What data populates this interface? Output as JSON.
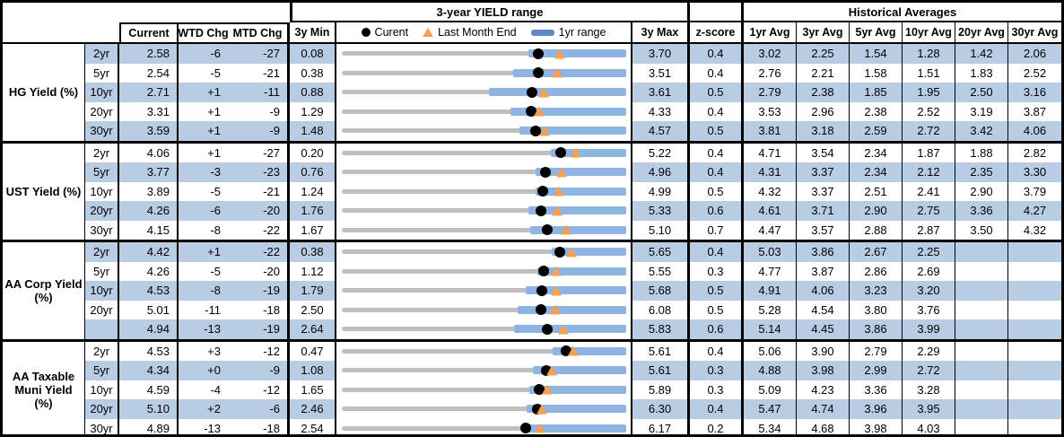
{
  "colors": {
    "band": "#B8CCE4",
    "range_bar": "#8EB4E3",
    "track": "#BFBFBF",
    "current_marker": "#000000",
    "last_month_end_marker": "#F7A050",
    "border": "#000000"
  },
  "header": {
    "range_group_title": "3-year YIELD range",
    "hist_group_title": "Historical Averages",
    "col_current": "Current",
    "col_wtd": "WTD Chg",
    "col_mtd": "MTD Chg",
    "col_min": "3y Min",
    "col_max": "3y Max",
    "col_z": "z-score",
    "avg_cols": [
      "1yr Avg",
      "3yr Avg",
      "5yr Avg",
      "10yr Avg",
      "20yr Avg",
      "30yr Avg"
    ],
    "legend": [
      {
        "marker": "black-dot",
        "label": "Curent"
      },
      {
        "marker": "orange-triangle",
        "label": "Last Month End"
      },
      {
        "marker": "blue-bar",
        "label": "1yr range"
      }
    ]
  },
  "chart_data": {
    "type": "bullet-range table",
    "description": "Per row: gray track spans 3y Min to 3y Max; blue bar = 1yr range; black dot = current yield; orange triangle = last month end yield. 1yr range endpoints estimated from pixels.",
    "groups": [
      {
        "label": "HG Yield (%)",
        "rows": [
          {
            "tenor": "2yr",
            "current": "2.58",
            "wtd_chg": "-6",
            "mtd_chg": "-27",
            "min_3y": "0.08",
            "max_3y": "3.70",
            "z_score": "0.4",
            "avgs": [
              "3.02",
              "2.25",
              "1.54",
              "1.28",
              "1.42",
              "2.06"
            ],
            "last_month_end": 2.85,
            "range_1y": [
              2.45,
              3.7
            ]
          },
          {
            "tenor": "5yr",
            "current": "2.54",
            "wtd_chg": "-5",
            "mtd_chg": "-21",
            "min_3y": "0.38",
            "max_3y": "3.51",
            "z_score": "0.4",
            "avgs": [
              "2.76",
              "2.21",
              "1.58",
              "1.51",
              "1.83",
              "2.52"
            ],
            "last_month_end": 2.75,
            "range_1y": [
              2.27,
              3.51
            ]
          },
          {
            "tenor": "10yr",
            "current": "2.71",
            "wtd_chg": "+1",
            "mtd_chg": "-11",
            "min_3y": "0.88",
            "max_3y": "3.61",
            "z_score": "0.5",
            "avgs": [
              "2.79",
              "2.38",
              "1.85",
              "1.95",
              "2.50",
              "3.16"
            ],
            "last_month_end": 2.82,
            "range_1y": [
              2.29,
              3.61
            ]
          },
          {
            "tenor": "20yr",
            "current": "3.31",
            "wtd_chg": "+1",
            "mtd_chg": "-9",
            "min_3y": "1.29",
            "max_3y": "4.33",
            "z_score": "0.4",
            "avgs": [
              "3.53",
              "2.96",
              "2.38",
              "2.52",
              "3.19",
              "3.87"
            ],
            "last_month_end": 3.4,
            "range_1y": [
              3.09,
              4.33
            ]
          },
          {
            "tenor": "30yr",
            "current": "3.59",
            "wtd_chg": "+1",
            "mtd_chg": "-9",
            "min_3y": "1.48",
            "max_3y": "4.57",
            "z_score": "0.5",
            "avgs": [
              "3.81",
              "3.18",
              "2.59",
              "2.72",
              "3.42",
              "4.06"
            ],
            "last_month_end": 3.68,
            "range_1y": [
              3.41,
              4.57
            ]
          }
        ]
      },
      {
        "label": "UST Yield (%)",
        "rows": [
          {
            "tenor": "2yr",
            "current": "4.06",
            "wtd_chg": "+1",
            "mtd_chg": "-27",
            "min_3y": "0.20",
            "max_3y": "5.22",
            "z_score": "0.4",
            "avgs": [
              "4.71",
              "3.54",
              "2.34",
              "1.87",
              "1.88",
              "2.82"
            ],
            "last_month_end": 4.33,
            "range_1y": [
              3.89,
              5.22
            ]
          },
          {
            "tenor": "5yr",
            "current": "3.77",
            "wtd_chg": "-3",
            "mtd_chg": "-23",
            "min_3y": "0.76",
            "max_3y": "4.96",
            "z_score": "0.4",
            "avgs": [
              "4.31",
              "3.37",
              "2.34",
              "2.12",
              "2.35",
              "3.30"
            ],
            "last_month_end": 4.0,
            "range_1y": [
              3.62,
              4.96
            ]
          },
          {
            "tenor": "10yr",
            "current": "3.89",
            "wtd_chg": "-5",
            "mtd_chg": "-21",
            "min_3y": "1.24",
            "max_3y": "4.99",
            "z_score": "0.5",
            "avgs": [
              "4.32",
              "3.37",
              "2.51",
              "2.41",
              "2.90",
              "3.79"
            ],
            "last_month_end": 4.1,
            "range_1y": [
              3.79,
              4.99
            ]
          },
          {
            "tenor": "20yr",
            "current": "4.26",
            "wtd_chg": "-6",
            "mtd_chg": "-20",
            "min_3y": "1.76",
            "max_3y": "5.33",
            "z_score": "0.6",
            "avgs": [
              "4.61",
              "3.71",
              "2.90",
              "2.75",
              "3.36",
              "4.27"
            ],
            "last_month_end": 4.46,
            "range_1y": [
              4.1,
              5.33
            ]
          },
          {
            "tenor": "30yr",
            "current": "4.15",
            "wtd_chg": "-8",
            "mtd_chg": "-22",
            "min_3y": "1.67",
            "max_3y": "5.10",
            "z_score": "0.7",
            "avgs": [
              "4.47",
              "3.57",
              "2.88",
              "2.87",
              "3.50",
              "4.32"
            ],
            "last_month_end": 4.37,
            "range_1y": [
              3.94,
              5.1
            ]
          }
        ]
      },
      {
        "label": "AA Corp Yield (%)",
        "rows": [
          {
            "tenor": "2yr",
            "current": "4.42",
            "wtd_chg": "+1",
            "mtd_chg": "-22",
            "min_3y": "0.38",
            "max_3y": "5.65",
            "z_score": "0.4",
            "avgs": [
              "5.03",
              "3.86",
              "2.67",
              "2.25",
              "",
              ""
            ],
            "last_month_end": 4.64,
            "range_1y": [
              4.27,
              5.65
            ]
          },
          {
            "tenor": "5yr",
            "current": "4.26",
            "wtd_chg": "-5",
            "mtd_chg": "-20",
            "min_3y": "1.12",
            "max_3y": "5.55",
            "z_score": "0.3",
            "avgs": [
              "4.77",
              "3.87",
              "2.86",
              "2.69",
              "",
              ""
            ],
            "last_month_end": 4.46,
            "range_1y": [
              4.17,
              5.55
            ]
          },
          {
            "tenor": "10yr",
            "current": "4.53",
            "wtd_chg": "-8",
            "mtd_chg": "-19",
            "min_3y": "1.79",
            "max_3y": "5.68",
            "z_score": "0.5",
            "avgs": [
              "4.91",
              "4.06",
              "3.23",
              "3.20",
              "",
              ""
            ],
            "last_month_end": 4.72,
            "range_1y": [
              4.31,
              5.68
            ]
          },
          {
            "tenor": "20yr",
            "current": "5.01",
            "wtd_chg": "-11",
            "mtd_chg": "-18",
            "min_3y": "2.50",
            "max_3y": "6.08",
            "z_score": "0.5",
            "avgs": [
              "5.28",
              "4.54",
              "3.80",
              "3.76",
              "",
              ""
            ],
            "last_month_end": 5.19,
            "range_1y": [
              4.71,
              6.08
            ]
          },
          {
            "tenor": "",
            "current": "4.94",
            "wtd_chg": "-13",
            "mtd_chg": "-19",
            "min_3y": "2.64",
            "max_3y": "5.83",
            "z_score": "0.6",
            "avgs": [
              "5.14",
              "4.45",
              "3.86",
              "3.99",
              "",
              ""
            ],
            "last_month_end": 5.13,
            "range_1y": [
              4.57,
              5.83
            ]
          }
        ]
      },
      {
        "label": "AA Taxable Muni Yield (%)",
        "rows": [
          {
            "tenor": "2yr",
            "current": "4.53",
            "wtd_chg": "+3",
            "mtd_chg": "-12",
            "min_3y": "0.47",
            "max_3y": "5.61",
            "z_score": "0.4",
            "avgs": [
              "5.06",
              "3.90",
              "2.79",
              "2.29",
              "",
              ""
            ],
            "last_month_end": 4.65,
            "range_1y": [
              4.28,
              5.61
            ]
          },
          {
            "tenor": "5yr",
            "current": "4.34",
            "wtd_chg": "+0",
            "mtd_chg": "-9",
            "min_3y": "1.08",
            "max_3y": "5.61",
            "z_score": "0.3",
            "avgs": [
              "4.88",
              "3.98",
              "2.99",
              "2.72",
              "",
              ""
            ],
            "last_month_end": 4.43,
            "range_1y": [
              4.12,
              5.61
            ]
          },
          {
            "tenor": "10yr",
            "current": "4.59",
            "wtd_chg": "-4",
            "mtd_chg": "-12",
            "min_3y": "1.65",
            "max_3y": "5.89",
            "z_score": "0.3",
            "avgs": [
              "5.09",
              "4.23",
              "3.36",
              "3.28",
              "",
              ""
            ],
            "last_month_end": 4.71,
            "range_1y": [
              4.44,
              5.89
            ]
          },
          {
            "tenor": "20yr",
            "current": "5.10",
            "wtd_chg": "+2",
            "mtd_chg": "-6",
            "min_3y": "2.46",
            "max_3y": "6.30",
            "z_score": "0.4",
            "avgs": [
              "5.47",
              "4.74",
              "3.96",
              "3.95",
              "",
              ""
            ],
            "last_month_end": 5.16,
            "range_1y": [
              4.96,
              6.3
            ]
          },
          {
            "tenor": "30yr",
            "current": "4.89",
            "wtd_chg": "-13",
            "mtd_chg": "-18",
            "min_3y": "2.54",
            "max_3y": "6.17",
            "z_score": "0.2",
            "avgs": [
              "5.34",
              "4.68",
              "3.98",
              "4.03",
              "",
              ""
            ],
            "last_month_end": 5.07,
            "range_1y": [
              4.83,
              6.17
            ]
          }
        ]
      }
    ]
  }
}
